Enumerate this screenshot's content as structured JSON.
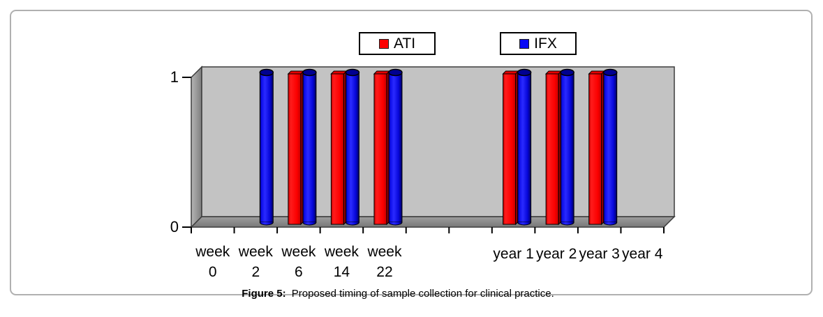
{
  "figure": {
    "caption_label": "Figure 5:",
    "caption_text": "Proposed timing of sample collection for clinical practice."
  },
  "legend": [
    {
      "name": "ATI",
      "color": "#fe0000"
    },
    {
      "name": "IFX",
      "color": "#0a0af5"
    }
  ],
  "chart_data": {
    "type": "bar",
    "subtype": "3d-column",
    "title": "",
    "xlabel": "",
    "ylabel": "",
    "categories": [
      "week 0",
      "week 2",
      "week 6",
      "week 14",
      "week 22",
      "",
      "",
      "year 1",
      "year 2",
      "year 3",
      "year 4"
    ],
    "series": [
      {
        "name": "ATI",
        "shape": "box",
        "color": "#fe0000",
        "values": [
          0,
          0,
          1,
          1,
          1,
          0,
          0,
          1,
          1,
          1,
          0
        ]
      },
      {
        "name": "IFX",
        "shape": "cylinder",
        "color": "#0a0af5",
        "values": [
          0,
          1,
          1,
          1,
          1,
          0,
          0,
          1,
          1,
          1,
          0
        ]
      }
    ],
    "ylim": [
      0,
      1
    ],
    "yticks": [
      0,
      1
    ],
    "grid": false,
    "legend_position": "top"
  }
}
